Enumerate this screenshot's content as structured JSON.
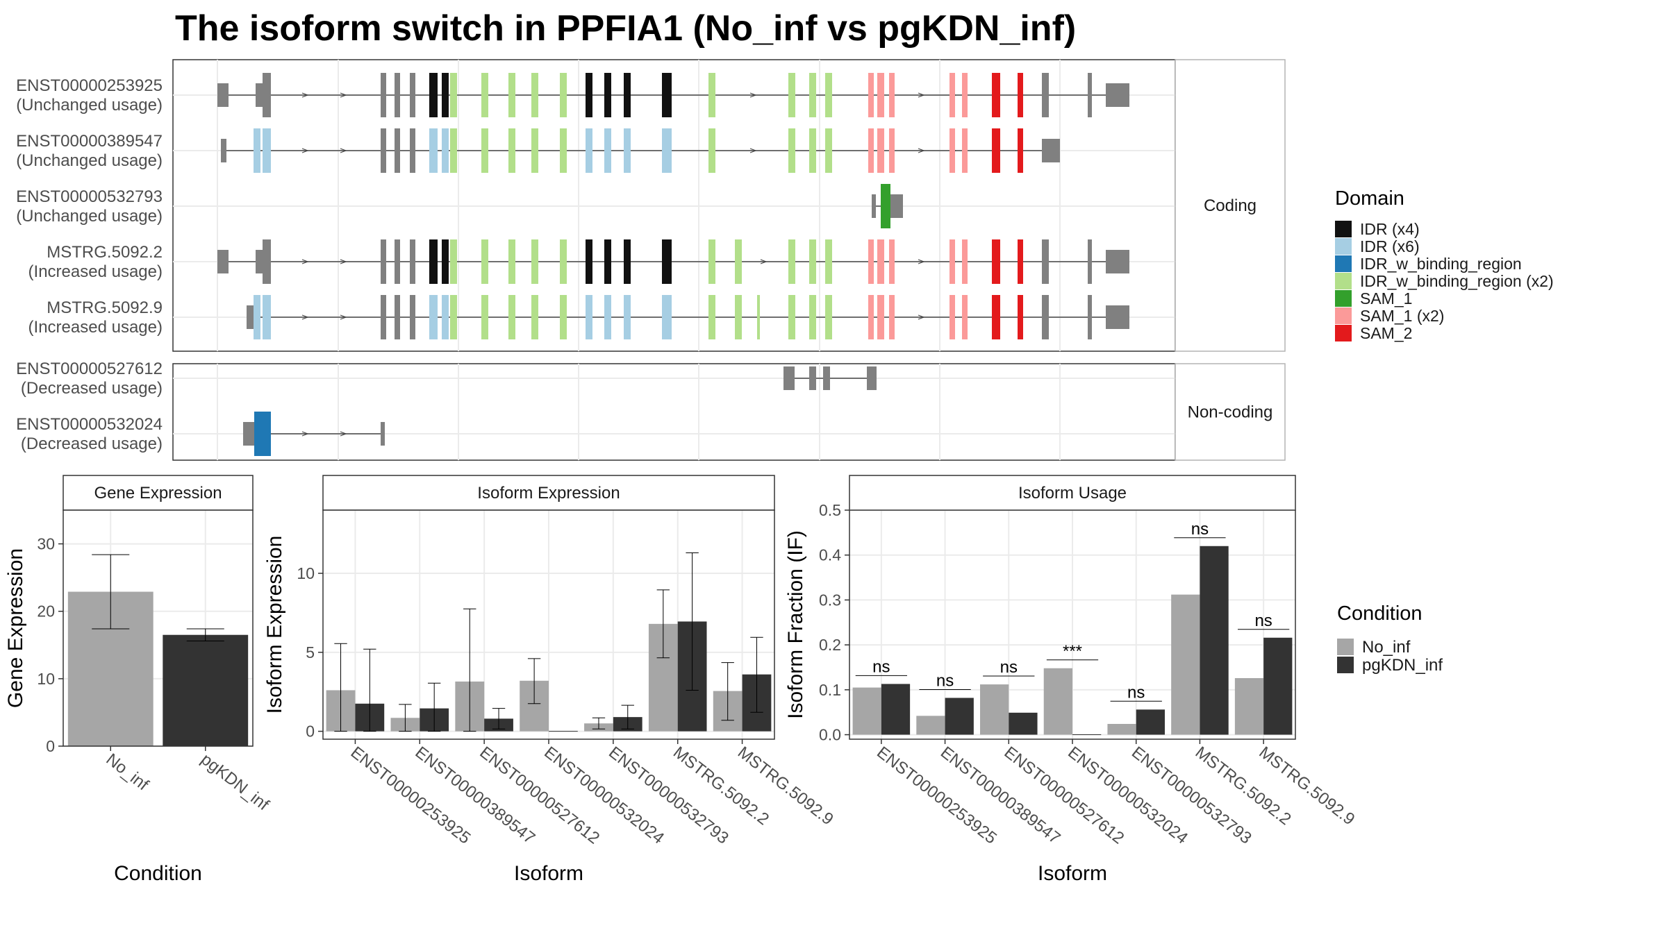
{
  "title": "The isoform switch in PPFIA1 (No_inf vs pgKDN_inf)",
  "colors": {
    "gene_line": "#444444",
    "exon_utr": "#808080",
    "no_inf": "#a6a6a6",
    "pgkdn_inf": "#333333",
    "panel_border": "#333333",
    "strip_border": "#b3b3b3",
    "grid": "#ebebeb"
  },
  "isoform_structure": {
    "facets": [
      {
        "label": "Coding",
        "rows": [
          "ENST00000253925",
          "ENST00000389547",
          "ENST00000532793",
          "MSTRG.5092.2",
          "MSTRG.5092.9"
        ]
      },
      {
        "label": "Non-coding",
        "rows": [
          "ENST00000527612",
          "ENST00000532024"
        ]
      }
    ],
    "isoforms": [
      {
        "id": "ENST00000253925",
        "usage": "(Unchanged usage)"
      },
      {
        "id": "ENST00000389547",
        "usage": "(Unchanged usage)"
      },
      {
        "id": "ENST00000532793",
        "usage": "(Unchanged usage)"
      },
      {
        "id": "MSTRG.5092.2",
        "usage": "(Increased usage)"
      },
      {
        "id": "MSTRG.5092.9",
        "usage": "(Increased usage)"
      },
      {
        "id": "ENST00000527612",
        "usage": "(Decreased usage)"
      },
      {
        "id": "ENST00000532024",
        "usage": "(Decreased usage)"
      }
    ]
  },
  "domain_legend": {
    "title": "Domain",
    "items": [
      {
        "label": "IDR (x4)",
        "color": "#111111"
      },
      {
        "label": "IDR (x6)",
        "color": "#a6cee3"
      },
      {
        "label": "IDR_w_binding_region",
        "color": "#1f78b4"
      },
      {
        "label": "IDR_w_binding_region (x2)",
        "color": "#b2df8a"
      },
      {
        "label": "SAM_1",
        "color": "#33a02c"
      },
      {
        "label": "SAM_1 (x2)",
        "color": "#fb9a99"
      },
      {
        "label": "SAM_2",
        "color": "#e31a1c"
      }
    ]
  },
  "condition_legend": {
    "title": "Condition",
    "items": [
      {
        "label": "No_inf",
        "color": "#a6a6a6"
      },
      {
        "label": "pgKDN_inf",
        "color": "#333333"
      }
    ]
  },
  "chart_data": [
    {
      "type": "bar",
      "title": "Gene Expression",
      "xlabel": "Condition",
      "ylabel": "Gene Expression",
      "ylim": [
        0,
        35
      ],
      "yticks": [
        0,
        10,
        20,
        30
      ],
      "categories": [
        "No_inf",
        "pgKDN_inf"
      ],
      "values": [
        22.9,
        16.5
      ],
      "error_low": [
        17.4,
        15.6
      ],
      "error_high": [
        28.4,
        17.4
      ]
    },
    {
      "type": "bar",
      "title": "Isoform Expression",
      "xlabel": "Isoform",
      "ylabel": "Isoform Expression",
      "ylim": [
        -0.5,
        14
      ],
      "yticks": [
        0,
        5,
        10
      ],
      "categories": [
        "ENST00000253925",
        "ENST00000389547",
        "ENST00000527612",
        "ENST00000532024",
        "ENST00000532793",
        "MSTRG.5092.2",
        "MSTRG.5092.9"
      ],
      "series": [
        {
          "name": "No_inf",
          "values": [
            2.6,
            0.85,
            3.15,
            3.2,
            0.5,
            6.8,
            2.55
          ],
          "error_low": [
            0,
            0,
            0,
            1.75,
            0.15,
            4.65,
            0.7
          ],
          "error_high": [
            5.55,
            1.7,
            7.75,
            4.6,
            0.85,
            8.95,
            4.35
          ]
        },
        {
          "name": "pgKDN_inf",
          "values": [
            1.75,
            1.45,
            0.8,
            0.0,
            0.9,
            6.95,
            3.6
          ],
          "error_low": [
            0,
            0,
            0.15,
            0,
            0.15,
            2.6,
            1.2
          ],
          "error_high": [
            5.2,
            3.05,
            1.45,
            0,
            1.65,
            11.3,
            5.95
          ]
        }
      ]
    },
    {
      "type": "bar",
      "title": "Isoform Usage",
      "xlabel": "Isoform",
      "ylabel": "Isoform Fraction (IF)",
      "ylim": [
        -0.01,
        0.5
      ],
      "yticks": [
        0.0,
        0.1,
        0.2,
        0.3,
        0.4,
        0.5
      ],
      "categories": [
        "ENST00000253925",
        "ENST00000389547",
        "ENST00000527612",
        "ENST00000532024",
        "ENST00000532793",
        "MSTRG.5092.2",
        "MSTRG.5092.9"
      ],
      "series": [
        {
          "name": "No_inf",
          "values": [
            0.105,
            0.042,
            0.112,
            0.148,
            0.024,
            0.312,
            0.126
          ]
        },
        {
          "name": "pgKDN_inf",
          "values": [
            0.113,
            0.082,
            0.049,
            0.0,
            0.056,
            0.42,
            0.216
          ]
        }
      ],
      "significance": [
        "ns",
        "ns",
        "ns",
        "***",
        "ns",
        "ns",
        "ns"
      ]
    }
  ]
}
